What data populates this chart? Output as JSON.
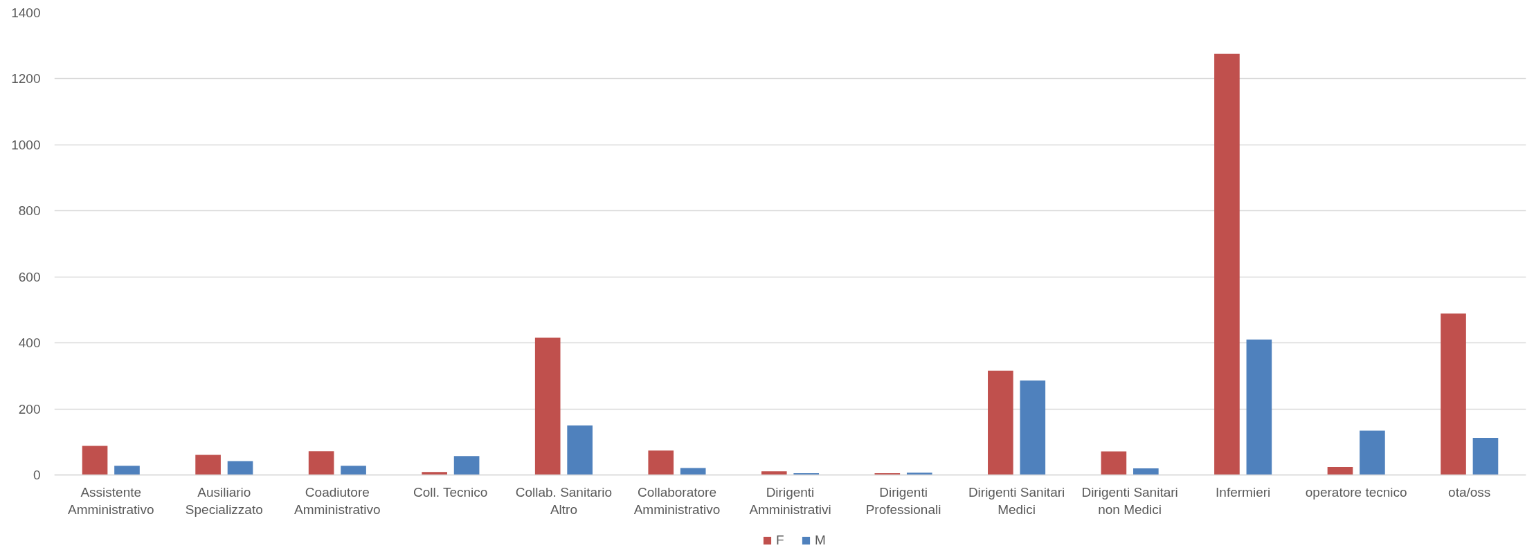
{
  "chart_data": {
    "type": "bar",
    "categories": [
      "Assistente Amministrativo",
      "Ausiliario Specializzato",
      "Coadiutore Amministrativo",
      "Coll. Tecnico",
      "Collab. Sanitario Altro",
      "Collaboratore Amministrativo",
      "Dirigenti Amministrativi",
      "Dirigenti Professionali",
      "Dirigenti Sanitari Medici",
      "Dirigenti Sanitari non Medici",
      "Infermieri",
      "operatore tecnico",
      "ota/oss"
    ],
    "series": [
      {
        "name": "F",
        "color": "#c0504d",
        "values": [
          88,
          61,
          72,
          9,
          416,
          74,
          11,
          5,
          316,
          71,
          1276,
          24,
          489
        ]
      },
      {
        "name": "M",
        "color": "#4f81bd",
        "values": [
          28,
          42,
          28,
          57,
          150,
          21,
          5,
          7,
          286,
          20,
          410,
          134,
          112
        ]
      }
    ],
    "ylim": [
      0,
      1400
    ],
    "yticks": [
      0,
      200,
      400,
      600,
      800,
      1000,
      1200,
      1400
    ],
    "grid": "y",
    "legend": "bottom"
  }
}
